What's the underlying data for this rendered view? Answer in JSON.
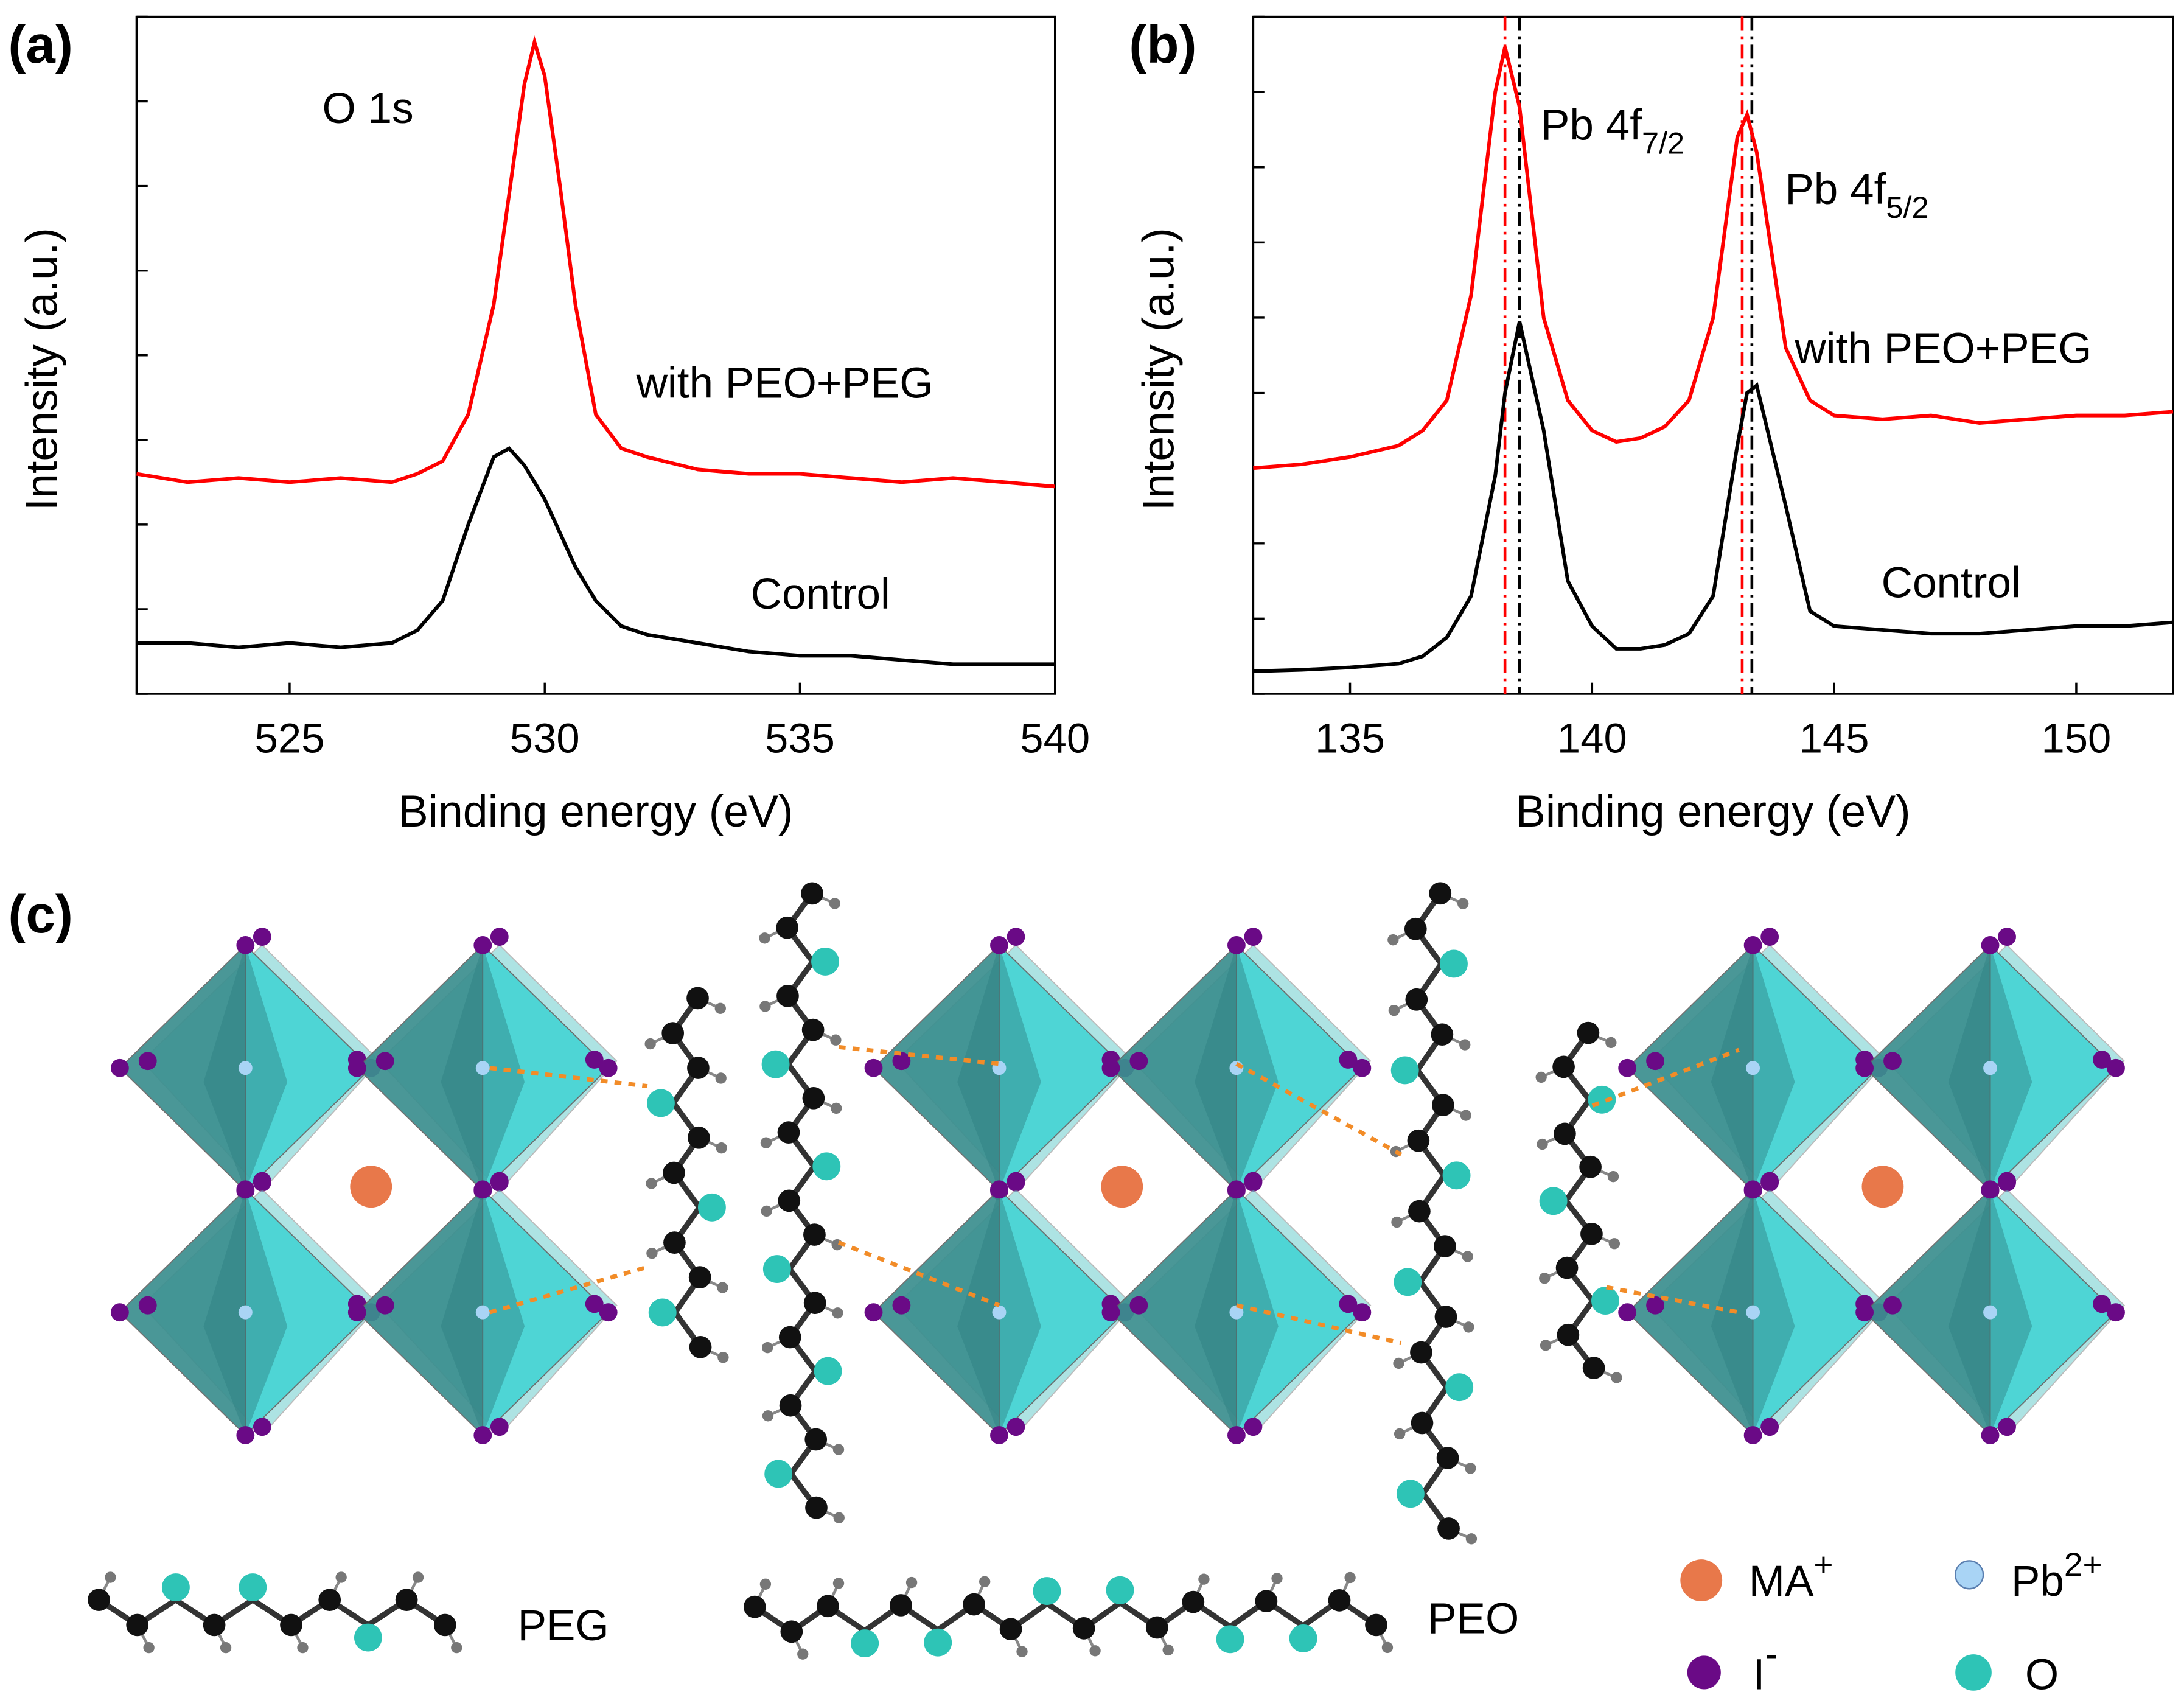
{
  "chart_data": [
    {
      "type": "line",
      "panel": "(a)",
      "xlabel": "Binding energy (eV)",
      "ylabel": "Intensity (a.u.)",
      "xlim": [
        522,
        540
      ],
      "xticks": [
        525,
        530,
        535,
        540
      ],
      "ylim": [
        0,
        8
      ],
      "yticks": [
        0,
        1,
        2,
        3,
        4,
        5,
        6,
        7,
        8
      ],
      "annotation": "O 1s",
      "x": [
        522,
        523,
        524,
        525,
        526,
        527,
        527.5,
        528,
        528.5,
        529,
        529.3,
        529.6,
        529.8,
        530,
        530.3,
        530.6,
        531,
        531.5,
        532,
        533,
        534,
        535,
        536,
        537,
        538,
        539,
        540
      ],
      "series": [
        {
          "name": "with PEO+PEG",
          "color": "#ff0000",
          "values": [
            2.6,
            2.5,
            2.55,
            2.5,
            2.55,
            2.5,
            2.6,
            2.75,
            3.3,
            4.6,
            5.9,
            7.2,
            7.7,
            7.3,
            6.0,
            4.6,
            3.3,
            2.9,
            2.8,
            2.65,
            2.6,
            2.6,
            2.55,
            2.5,
            2.55,
            2.5,
            2.45
          ]
        },
        {
          "name": "Control",
          "color": "#000000",
          "values": [
            0.6,
            0.6,
            0.55,
            0.6,
            0.55,
            0.6,
            0.75,
            1.1,
            2.0,
            2.8,
            2.9,
            2.7,
            2.5,
            2.3,
            1.9,
            1.5,
            1.1,
            0.8,
            0.7,
            0.6,
            0.5,
            0.45,
            0.45,
            0.4,
            0.35,
            0.35,
            0.35
          ]
        }
      ]
    },
    {
      "type": "line",
      "panel": "(b)",
      "xlabel": "Binding energy (eV)",
      "ylabel": "Intensity (a.u.)",
      "xlim": [
        133,
        152
      ],
      "xticks": [
        135,
        140,
        145,
        150
      ],
      "ylim": [
        0,
        9
      ],
      "yticks": [
        0,
        1,
        2,
        3,
        4,
        5,
        6,
        7,
        8,
        9
      ],
      "peaks": [
        {
          "text": "Pb 4f",
          "sub": "7/2"
        },
        {
          "text": "Pb 4f",
          "sub": "5/2"
        }
      ],
      "reference_lines": [
        {
          "x": 138.2,
          "color": "#ff0000"
        },
        {
          "x": 138.5,
          "color": "#000000"
        },
        {
          "x": 143.1,
          "color": "#ff0000"
        },
        {
          "x": 143.3,
          "color": "#000000"
        }
      ],
      "x": [
        133,
        134,
        135,
        136,
        136.5,
        137,
        137.5,
        138,
        138.2,
        138.5,
        139,
        139.5,
        140,
        140.5,
        141,
        141.5,
        142,
        142.5,
        143,
        143.2,
        143.4,
        144,
        144.5,
        145,
        146,
        147,
        148,
        149,
        150,
        151,
        152
      ],
      "series": [
        {
          "name": "with PEO+PEG",
          "color": "#ff0000",
          "values": [
            3.0,
            3.05,
            3.15,
            3.3,
            3.5,
            3.9,
            5.3,
            8.0,
            8.6,
            7.8,
            5.0,
            3.9,
            3.5,
            3.35,
            3.4,
            3.55,
            3.9,
            5.0,
            7.4,
            7.7,
            7.2,
            4.6,
            3.9,
            3.7,
            3.65,
            3.7,
            3.6,
            3.65,
            3.7,
            3.7,
            3.75
          ]
        },
        {
          "name": "Control",
          "color": "#000000",
          "values": [
            0.3,
            0.32,
            0.35,
            0.4,
            0.5,
            0.75,
            1.3,
            2.9,
            4.0,
            4.95,
            3.5,
            1.5,
            0.9,
            0.6,
            0.6,
            0.65,
            0.8,
            1.3,
            3.3,
            4.0,
            4.1,
            2.5,
            1.1,
            0.9,
            0.85,
            0.8,
            0.8,
            0.85,
            0.9,
            0.9,
            0.95
          ]
        }
      ]
    }
  ],
  "diagram": {
    "panel": "(c)",
    "peg": "PEG",
    "peo": "PEO",
    "legend": [
      {
        "text": "MA",
        "sup": "+"
      },
      {
        "text": "Pb",
        "sup": "2+"
      },
      {
        "text": "I",
        "sup": "-"
      },
      {
        "text": "O"
      }
    ]
  }
}
